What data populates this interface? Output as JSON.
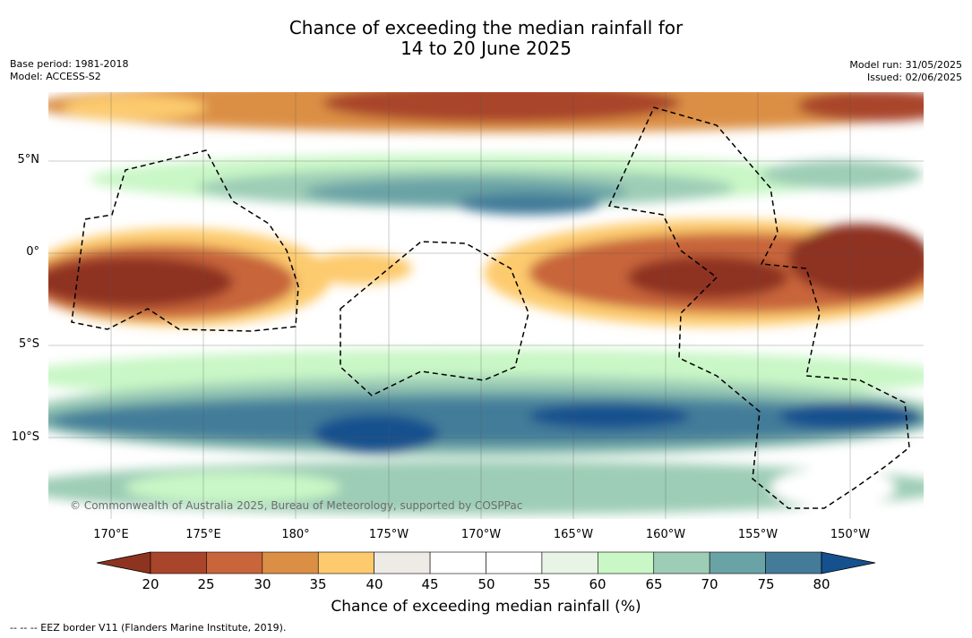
{
  "title_line1": "Chance of exceeding the median rainfall for",
  "title_line2": "14 to 20 June 2025",
  "meta_left": {
    "base_period": "Base period: 1981-2018",
    "model": "Model: ACCESS-S2"
  },
  "meta_right": {
    "model_run": "Model run: 31/05/2025",
    "issued": "Issued: 02/06/2025"
  },
  "lat_labels": [
    "5°N",
    "0°",
    "5°S",
    "10°S"
  ],
  "lon_labels": [
    "170°E",
    "175°E",
    "180°",
    "175°W",
    "170°W",
    "165°W",
    "160°W",
    "155°W",
    "150°W"
  ],
  "copyright": "© Commonwealth of Australia 2025, Bureau of Meteorology, supported by COSPPac",
  "colorbar": {
    "ticks": [
      "20",
      "25",
      "30",
      "35",
      "40",
      "45",
      "50",
      "55",
      "60",
      "65",
      "70",
      "75",
      "80"
    ],
    "colors": [
      "#8e3320",
      "#a9452a",
      "#c8653a",
      "#db8f45",
      "#fdcb6e",
      "#eeeae6",
      "#ffffff",
      "#ffffff",
      "#e8f4e6",
      "#c9f7c6",
      "#9dcdb6",
      "#6aa3a6",
      "#437b99",
      "#15518e"
    ],
    "title": "Chance of exceeding median rainfall (%)"
  },
  "footnote": "--  --  -- EEZ border V11 (Flanders Marine Institute, 2019)."
}
